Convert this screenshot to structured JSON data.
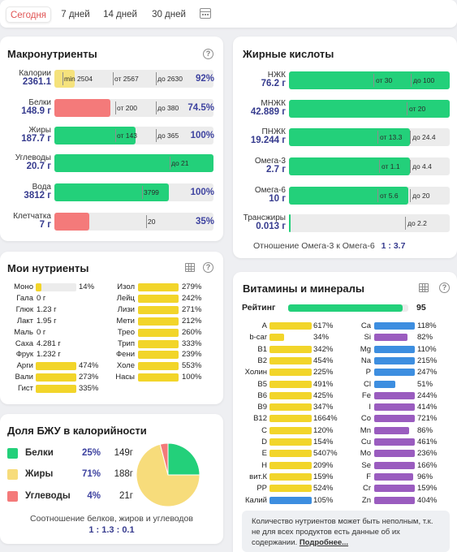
{
  "tabs": [
    {
      "label": "Сегодня",
      "active": true
    },
    {
      "label": "7 дней"
    },
    {
      "label": "14 дней"
    },
    {
      "label": "30 дней"
    }
  ],
  "macro": {
    "title": "Макронутриенты",
    "rows": [
      {
        "name": "Калории",
        "value": "2361.1",
        "pct": "92%",
        "fill": 0.13,
        "color": "ylight",
        "markers": [
          "min 2504",
          "от 2567",
          "до 2630"
        ]
      },
      {
        "name": "Белки",
        "value": "148.9 г",
        "pct": "74.5%",
        "fill": 0.35,
        "color": "r",
        "markers": [
          "от 200",
          "до 380"
        ]
      },
      {
        "name": "Жиры",
        "value": "187.7 г",
        "pct": "100%",
        "fill": 0.51,
        "color": "g",
        "markers": [
          "от 143",
          "до 365"
        ]
      },
      {
        "name": "Углеводы",
        "value": "20.7 г",
        "pct": "",
        "fill": 1.0,
        "color": "g",
        "markers": [
          "до 21"
        ]
      },
      {
        "name": "Вода",
        "value": "3812 г",
        "pct": "100%",
        "fill": 0.72,
        "color": "g",
        "markers": [
          "3799"
        ]
      },
      {
        "name": "Клетчатка",
        "value": "7 г",
        "pct": "35%",
        "fill": 0.22,
        "color": "r",
        "markers": [
          "20"
        ]
      }
    ]
  },
  "fatty": {
    "title": "Жирные кислоты",
    "rows": [
      {
        "name": "НЖК",
        "value": "76.2 г",
        "fill": 1.0,
        "markers": [
          "от 30",
          "до 100"
        ]
      },
      {
        "name": "МНЖК",
        "value": "42.889 г",
        "fill": 1.0,
        "markers": [
          "от 20"
        ]
      },
      {
        "name": "ПНЖК",
        "value": "19.244 г",
        "fill": 0.75,
        "markers": [
          "от 13.3",
          "до 24.4"
        ]
      },
      {
        "name": "Омега-3",
        "value": "2.7 г",
        "fill": 0.75,
        "markers": [
          "от 1.1",
          "до 4.4"
        ]
      },
      {
        "name": "Омега-6",
        "value": "10 г",
        "fill": 0.74,
        "markers": [
          "от 5.6",
          "до 20"
        ]
      },
      {
        "name": "Трансжиры",
        "value": "0.013 г",
        "fill": 0.01,
        "markers": [
          "до 2.2"
        ]
      }
    ],
    "ratio_label": "Отношение Омега-3 к Омега-6",
    "ratio_value": "1 : 3.7"
  },
  "nutrients": {
    "title": "Мои нутриенты",
    "left": [
      {
        "text": "Моно",
        "value": "14%",
        "bar": 0.14,
        "color": "y"
      },
      {
        "text": "Гала",
        "value": "0 г"
      },
      {
        "text": "Глюк",
        "value": "1.23 г"
      },
      {
        "text": "Лакт",
        "value": "1.95 г"
      },
      {
        "text": "Маль",
        "value": "0 г"
      },
      {
        "text": "Саха",
        "value": "4.281 г"
      },
      {
        "text": "Фрук",
        "value": "1.232 г"
      },
      {
        "text": "Арги",
        "value": "474%",
        "bar": 1,
        "color": "y"
      },
      {
        "text": "Вали",
        "value": "273%",
        "bar": 1,
        "color": "y"
      },
      {
        "text": "Гист",
        "value": "335%",
        "bar": 1,
        "color": "y"
      }
    ],
    "right": [
      {
        "text": "Изол",
        "value": "279%"
      },
      {
        "text": "Лейц",
        "value": "242%"
      },
      {
        "text": "Лизи",
        "value": "271%"
      },
      {
        "text": "Мети",
        "value": "212%"
      },
      {
        "text": "Трео",
        "value": "260%"
      },
      {
        "text": "Трип",
        "value": "333%"
      },
      {
        "text": "Фени",
        "value": "239%"
      },
      {
        "text": "Холе",
        "value": "553%"
      },
      {
        "text": "Насы",
        "value": "100%"
      }
    ]
  },
  "bju": {
    "title": "Доля БЖУ в калорийности",
    "rows": [
      {
        "name": "Белки",
        "pct": "25%",
        "grams": "149г",
        "color": "#23d07a"
      },
      {
        "name": "Жиры",
        "pct": "71%",
        "grams": "188г",
        "color": "#f7dc7b"
      },
      {
        "name": "Углеводы",
        "pct": "4%",
        "grams": "21г",
        "color": "#f47a7a"
      }
    ],
    "pie": [
      25,
      71,
      4
    ],
    "ratio_label": "Соотношение белков, жиров и углеводов",
    "ratio_value": "1 : 1.3 : 0.1"
  },
  "vitamins": {
    "title": "Витамины и минералы",
    "rating_label": "Рейтинг",
    "rating_value": "95",
    "rating_fill": 0.95,
    "left": [
      {
        "name": "A",
        "value": "617%",
        "color": "y",
        "fill": 1
      },
      {
        "name": "b-car",
        "value": "34%",
        "color": "y",
        "fill": 0.34
      },
      {
        "name": "B1",
        "value": "342%",
        "color": "y",
        "fill": 1
      },
      {
        "name": "B2",
        "value": "454%",
        "color": "y",
        "fill": 1
      },
      {
        "name": "Холин",
        "value": "225%",
        "color": "y",
        "fill": 1
      },
      {
        "name": "B5",
        "value": "491%",
        "color": "y",
        "fill": 1
      },
      {
        "name": "B6",
        "value": "425%",
        "color": "y",
        "fill": 1
      },
      {
        "name": "B9",
        "value": "347%",
        "color": "y",
        "fill": 1
      },
      {
        "name": "B12",
        "value": "1664%",
        "color": "y",
        "fill": 1
      },
      {
        "name": "C",
        "value": "120%",
        "color": "y",
        "fill": 1
      },
      {
        "name": "D",
        "value": "154%",
        "color": "y",
        "fill": 1
      },
      {
        "name": "E",
        "value": "5407%",
        "color": "y",
        "fill": 1
      },
      {
        "name": "H",
        "value": "209%",
        "color": "y",
        "fill": 1
      },
      {
        "name": "вит.К",
        "value": "159%",
        "color": "y",
        "fill": 1
      },
      {
        "name": "PP",
        "value": "524%",
        "color": "y",
        "fill": 1
      },
      {
        "name": "Калий",
        "value": "105%",
        "color": "b",
        "fill": 1
      }
    ],
    "right": [
      {
        "name": "Ca",
        "value": "118%",
        "color": "b",
        "fill": 1
      },
      {
        "name": "Si",
        "value": "82%",
        "color": "p",
        "fill": 0.82
      },
      {
        "name": "Mg",
        "value": "110%",
        "color": "b",
        "fill": 1
      },
      {
        "name": "Na",
        "value": "215%",
        "color": "b",
        "fill": 1
      },
      {
        "name": "P",
        "value": "247%",
        "color": "b",
        "fill": 1
      },
      {
        "name": "Cl",
        "value": "51%",
        "color": "b",
        "fill": 0.51
      },
      {
        "name": "Fe",
        "value": "244%",
        "color": "p",
        "fill": 1
      },
      {
        "name": "I",
        "value": "414%",
        "color": "p",
        "fill": 1
      },
      {
        "name": "Co",
        "value": "721%",
        "color": "p",
        "fill": 1
      },
      {
        "name": "Mn",
        "value": "86%",
        "color": "p",
        "fill": 0.86
      },
      {
        "name": "Cu",
        "value": "461%",
        "color": "p",
        "fill": 1
      },
      {
        "name": "Mo",
        "value": "236%",
        "color": "p",
        "fill": 1
      },
      {
        "name": "Se",
        "value": "166%",
        "color": "p",
        "fill": 1
      },
      {
        "name": "F",
        "value": "96%",
        "color": "p",
        "fill": 0.96
      },
      {
        "name": "Cr",
        "value": "159%",
        "color": "p",
        "fill": 1
      },
      {
        "name": "Zn",
        "value": "404%",
        "color": "p",
        "fill": 1
      }
    ],
    "note_text": "Количество нутриентов может быть неполным, т.к. не для всех продуктов есть данные об их содержании.",
    "note_link": "Подробнее..."
  }
}
